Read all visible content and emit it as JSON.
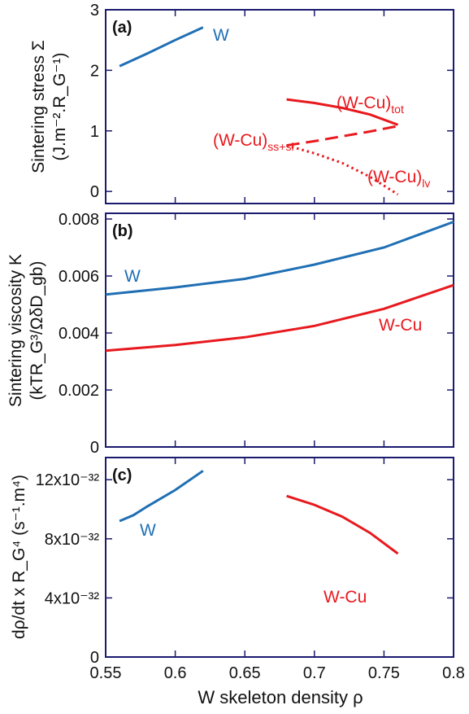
{
  "chart_data": [
    {
      "type": "line",
      "panel_label": "(a)",
      "ylabel_lines": [
        "Sintering stress Σ",
        "(J.m⁻².R_G⁻¹)"
      ],
      "xlim": [
        0.55,
        0.8
      ],
      "ylim": [
        -0.2,
        3
      ],
      "yticks": [
        {
          "value": 0,
          "label": "0"
        },
        {
          "value": 1,
          "label": "1"
        },
        {
          "value": 2,
          "label": "2"
        },
        {
          "value": 3,
          "label": "3"
        }
      ],
      "series": [
        {
          "name": "W",
          "color": "#1f6fb4",
          "dash": "solid",
          "x": [
            0.56,
            0.58,
            0.6,
            0.62
          ],
          "y": [
            2.07,
            2.28,
            2.5,
            2.71
          ]
        },
        {
          "name": "(W-Cu)tot",
          "name_main": "(W-Cu)",
          "name_sub": "tot",
          "color": "#e8191e",
          "dash": "solid",
          "x": [
            0.68,
            0.7,
            0.72,
            0.74,
            0.76
          ],
          "y": [
            1.52,
            1.46,
            1.38,
            1.27,
            1.1
          ]
        },
        {
          "name": "(W-Cu)ss+sl",
          "name_main": "(W-Cu)",
          "name_sub": "ss+sl",
          "color": "#e8191e",
          "dash": "dashed",
          "x": [
            0.68,
            0.7,
            0.72,
            0.74,
            0.76
          ],
          "y": [
            0.76,
            0.83,
            0.91,
            0.99,
            1.08
          ]
        },
        {
          "name": "(W-Cu)lv",
          "name_main": "(W-Cu)",
          "name_sub": "lv",
          "color": "#e8191e",
          "dash": "dotted",
          "x": [
            0.68,
            0.7,
            0.72,
            0.74,
            0.76
          ],
          "y": [
            0.76,
            0.63,
            0.47,
            0.24,
            -0.05
          ]
        }
      ]
    },
    {
      "type": "line",
      "panel_label": "(b)",
      "ylabel_lines": [
        "Sintering viscosity K",
        "(kTR_G³/ΩδD_gb)"
      ],
      "xlim": [
        0.55,
        0.8
      ],
      "ylim": [
        0,
        0.0082
      ],
      "yticks": [
        {
          "value": 0,
          "label": "0"
        },
        {
          "value": 0.002,
          "label": "0.002"
        },
        {
          "value": 0.004,
          "label": "0.004"
        },
        {
          "value": 0.006,
          "label": "0.006"
        },
        {
          "value": 0.008,
          "label": "0.008"
        }
      ],
      "series": [
        {
          "name": "W",
          "color": "#1f6fb4",
          "dash": "solid",
          "x": [
            0.55,
            0.6,
            0.65,
            0.7,
            0.75,
            0.8
          ],
          "y": [
            0.00535,
            0.0056,
            0.0059,
            0.0064,
            0.007,
            0.0079
          ]
        },
        {
          "name": "W-Cu",
          "color": "#e8191e",
          "dash": "solid",
          "x": [
            0.55,
            0.6,
            0.65,
            0.7,
            0.75,
            0.8
          ],
          "y": [
            0.00338,
            0.00358,
            0.00385,
            0.00425,
            0.00485,
            0.00568
          ]
        }
      ]
    },
    {
      "type": "line",
      "panel_label": "(c)",
      "ylabel_lines": [
        "dρ/dt x R_G⁴ (s⁻¹.m⁴)"
      ],
      "xlim": [
        0.55,
        0.8
      ],
      "ylim": [
        0,
        13.5
      ],
      "y_unit": "×10⁻³²",
      "yticks": [
        {
          "value": 0,
          "label": "0"
        },
        {
          "value": 4,
          "label": "4x10⁻³²"
        },
        {
          "value": 8,
          "label": "8x10⁻³²"
        },
        {
          "value": 12,
          "label": "12x10⁻³²"
        }
      ],
      "xticks": [
        {
          "value": 0.55,
          "label": "0.55"
        },
        {
          "value": 0.6,
          "label": "0.6"
        },
        {
          "value": 0.65,
          "label": "0.65"
        },
        {
          "value": 0.7,
          "label": "0.7"
        },
        {
          "value": 0.75,
          "label": "0.75"
        },
        {
          "value": 0.8,
          "label": "0.8"
        }
      ],
      "xlabel": "W skeleton density ρ",
      "series": [
        {
          "name": "W",
          "color": "#1f6fb4",
          "dash": "solid",
          "x": [
            0.56,
            0.57,
            0.58,
            0.6,
            0.62
          ],
          "y": [
            9.2,
            9.6,
            10.2,
            11.3,
            12.6
          ]
        },
        {
          "name": "W-Cu",
          "color": "#e8191e",
          "dash": "solid",
          "x": [
            0.68,
            0.7,
            0.72,
            0.74,
            0.76
          ],
          "y": [
            10.9,
            10.3,
            9.5,
            8.4,
            7.0
          ]
        }
      ]
    }
  ]
}
